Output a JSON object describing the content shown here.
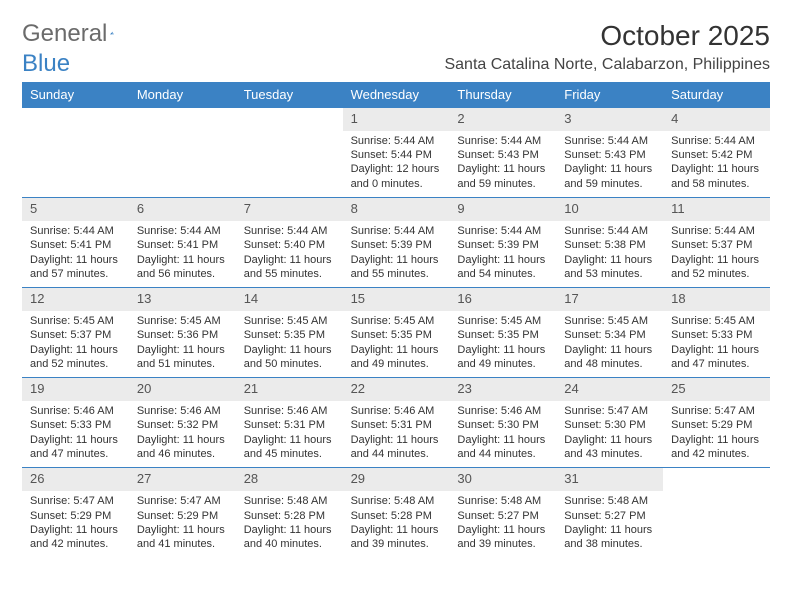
{
  "logo": {
    "text1": "General",
    "text2": "Blue"
  },
  "title": "October 2025",
  "location": "Santa Catalina Norte, Calabarzon, Philippines",
  "colors": {
    "header_bg": "#3b82c4",
    "header_text": "#ffffff",
    "daynum_bg": "#ebebeb",
    "border": "#3b82c4",
    "text": "#333333"
  },
  "day_names": [
    "Sunday",
    "Monday",
    "Tuesday",
    "Wednesday",
    "Thursday",
    "Friday",
    "Saturday"
  ],
  "layout": {
    "columns": 7,
    "rows": 5,
    "first_day_col": 3
  },
  "days": [
    {
      "n": "1",
      "sr": "5:44 AM",
      "ss": "5:44 PM",
      "dl": "12 hours and 0 minutes."
    },
    {
      "n": "2",
      "sr": "5:44 AM",
      "ss": "5:43 PM",
      "dl": "11 hours and 59 minutes."
    },
    {
      "n": "3",
      "sr": "5:44 AM",
      "ss": "5:43 PM",
      "dl": "11 hours and 59 minutes."
    },
    {
      "n": "4",
      "sr": "5:44 AM",
      "ss": "5:42 PM",
      "dl": "11 hours and 58 minutes."
    },
    {
      "n": "5",
      "sr": "5:44 AM",
      "ss": "5:41 PM",
      "dl": "11 hours and 57 minutes."
    },
    {
      "n": "6",
      "sr": "5:44 AM",
      "ss": "5:41 PM",
      "dl": "11 hours and 56 minutes."
    },
    {
      "n": "7",
      "sr": "5:44 AM",
      "ss": "5:40 PM",
      "dl": "11 hours and 55 minutes."
    },
    {
      "n": "8",
      "sr": "5:44 AM",
      "ss": "5:39 PM",
      "dl": "11 hours and 55 minutes."
    },
    {
      "n": "9",
      "sr": "5:44 AM",
      "ss": "5:39 PM",
      "dl": "11 hours and 54 minutes."
    },
    {
      "n": "10",
      "sr": "5:44 AM",
      "ss": "5:38 PM",
      "dl": "11 hours and 53 minutes."
    },
    {
      "n": "11",
      "sr": "5:44 AM",
      "ss": "5:37 PM",
      "dl": "11 hours and 52 minutes."
    },
    {
      "n": "12",
      "sr": "5:45 AM",
      "ss": "5:37 PM",
      "dl": "11 hours and 52 minutes."
    },
    {
      "n": "13",
      "sr": "5:45 AM",
      "ss": "5:36 PM",
      "dl": "11 hours and 51 minutes."
    },
    {
      "n": "14",
      "sr": "5:45 AM",
      "ss": "5:35 PM",
      "dl": "11 hours and 50 minutes."
    },
    {
      "n": "15",
      "sr": "5:45 AM",
      "ss": "5:35 PM",
      "dl": "11 hours and 49 minutes."
    },
    {
      "n": "16",
      "sr": "5:45 AM",
      "ss": "5:35 PM",
      "dl": "11 hours and 49 minutes."
    },
    {
      "n": "17",
      "sr": "5:45 AM",
      "ss": "5:34 PM",
      "dl": "11 hours and 48 minutes."
    },
    {
      "n": "18",
      "sr": "5:45 AM",
      "ss": "5:33 PM",
      "dl": "11 hours and 47 minutes."
    },
    {
      "n": "19",
      "sr": "5:46 AM",
      "ss": "5:33 PM",
      "dl": "11 hours and 47 minutes."
    },
    {
      "n": "20",
      "sr": "5:46 AM",
      "ss": "5:32 PM",
      "dl": "11 hours and 46 minutes."
    },
    {
      "n": "21",
      "sr": "5:46 AM",
      "ss": "5:31 PM",
      "dl": "11 hours and 45 minutes."
    },
    {
      "n": "22",
      "sr": "5:46 AM",
      "ss": "5:31 PM",
      "dl": "11 hours and 44 minutes."
    },
    {
      "n": "23",
      "sr": "5:46 AM",
      "ss": "5:30 PM",
      "dl": "11 hours and 44 minutes."
    },
    {
      "n": "24",
      "sr": "5:47 AM",
      "ss": "5:30 PM",
      "dl": "11 hours and 43 minutes."
    },
    {
      "n": "25",
      "sr": "5:47 AM",
      "ss": "5:29 PM",
      "dl": "11 hours and 42 minutes."
    },
    {
      "n": "26",
      "sr": "5:47 AM",
      "ss": "5:29 PM",
      "dl": "11 hours and 42 minutes."
    },
    {
      "n": "27",
      "sr": "5:47 AM",
      "ss": "5:29 PM",
      "dl": "11 hours and 41 minutes."
    },
    {
      "n": "28",
      "sr": "5:48 AM",
      "ss": "5:28 PM",
      "dl": "11 hours and 40 minutes."
    },
    {
      "n": "29",
      "sr": "5:48 AM",
      "ss": "5:28 PM",
      "dl": "11 hours and 39 minutes."
    },
    {
      "n": "30",
      "sr": "5:48 AM",
      "ss": "5:27 PM",
      "dl": "11 hours and 39 minutes."
    },
    {
      "n": "31",
      "sr": "5:48 AM",
      "ss": "5:27 PM",
      "dl": "11 hours and 38 minutes."
    }
  ],
  "labels": {
    "sunrise": "Sunrise:",
    "sunset": "Sunset:",
    "daylight": "Daylight:"
  }
}
